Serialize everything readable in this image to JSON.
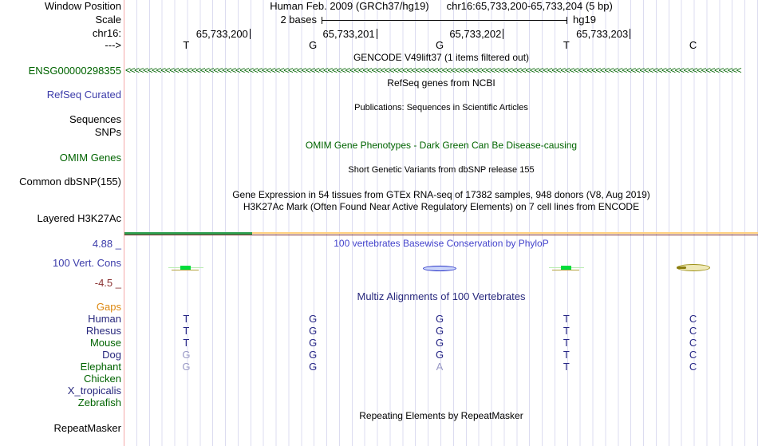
{
  "header": {
    "assembly": "Human Feb. 2009 (GRCh37/hg19)",
    "position": "chr16:65,733,200-65,733,204 (5 bp)",
    "scale_value": "2 bases",
    "assembly_short": "hg19"
  },
  "sidebar": {
    "window_position": "Window Position",
    "scale": "Scale",
    "chrom": "chr16:",
    "direction": "--->",
    "gene_id": "ENSG00000298355",
    "refseq_curated": "RefSeq Curated",
    "sequences": "Sequences",
    "snps": "SNPs",
    "omim_genes": "OMIM Genes",
    "common_dbsnp": "Common dbSNP(155)",
    "layered_h3k27ac": "Layered H3K27Ac",
    "phylop_max": "4.88 _",
    "vert_cons": "100 Vert. Cons",
    "phylop_min": "-4.5 _",
    "gaps": "Gaps",
    "repeatmasker": "RepeatMasker"
  },
  "ruler": {
    "coordinates": [
      "65,733,200",
      "65,733,201",
      "65,733,202",
      "65,733,203"
    ],
    "bases": [
      "T",
      "G",
      "G",
      "T",
      "C"
    ]
  },
  "titles": {
    "gencode": "GENCODE V49lift37 (1 items filtered out)",
    "refseq": "RefSeq genes from NCBI",
    "publications": "Publications: Sequences in Scientific Articles",
    "omim": "OMIM Gene Phenotypes - Dark Green Can Be Disease-causing",
    "dbsnp": "Short Genetic Variants from dbSNP release 155",
    "gtex": "Gene Expression in 54 tissues from GTEx RNA-seq of 17382 samples, 948 donors (V8, Aug 2019)",
    "h3k27ac": "H3K27Ac Mark (Often Found Near Active Regulatory Elements) on 7 cell lines from ENCODE",
    "phylop": "100 vertebrates Basewise Conservation by PhyloP",
    "multiz": "Multiz Alignments of 100 Vertebrates",
    "repeatmasker": "Repeating Elements by RepeatMasker"
  },
  "gene_track": {
    "arrow_char": "<",
    "arrow_count": 140
  },
  "conservation_marks": [
    {
      "base": 0,
      "style": "green"
    },
    {
      "base": 2,
      "style": "blue"
    },
    {
      "base": 3,
      "style": "green"
    },
    {
      "base": 4,
      "style": "olive"
    }
  ],
  "alignment": {
    "species": [
      {
        "name": "Human",
        "name_color": "navy",
        "bases": [
          "T",
          "G",
          "G",
          "T",
          "C"
        ],
        "dim": [
          0,
          0,
          0,
          0,
          0
        ]
      },
      {
        "name": "Rhesus",
        "name_color": "navy",
        "bases": [
          "T",
          "G",
          "G",
          "T",
          "C"
        ],
        "dim": [
          0,
          0,
          0,
          0,
          0
        ]
      },
      {
        "name": "Mouse",
        "name_color": "green",
        "bases": [
          "T",
          "G",
          "G",
          "T",
          "C"
        ],
        "dim": [
          0,
          0,
          0,
          0,
          0
        ]
      },
      {
        "name": "Dog",
        "name_color": "navy",
        "bases": [
          "G",
          "G",
          "G",
          "T",
          "C"
        ],
        "dim": [
          1,
          0,
          0,
          0,
          0
        ]
      },
      {
        "name": "Elephant",
        "name_color": "green",
        "bases": [
          "G",
          "G",
          "A",
          "T",
          "C"
        ],
        "dim": [
          1,
          0,
          1,
          0,
          0
        ]
      },
      {
        "name": "Chicken",
        "name_color": "green",
        "bases": [
          "",
          "",
          "",
          "",
          ""
        ],
        "dim": [
          0,
          0,
          0,
          0,
          0
        ]
      },
      {
        "name": "X_tropicalis",
        "name_color": "navy",
        "bases": [
          "",
          "",
          "",
          "",
          ""
        ],
        "dim": [
          0,
          0,
          0,
          0,
          0
        ]
      },
      {
        "name": "Zebrafish",
        "name_color": "green",
        "bases": [
          "",
          "",
          "",
          "",
          ""
        ],
        "dim": [
          0,
          0,
          0,
          0,
          0
        ]
      }
    ]
  },
  "colors": {
    "track_green": "#006400",
    "label_blue": "#3c3caa",
    "multiz_navy": "#28287d",
    "phylop_min_maroon": "#8b3333",
    "gaps_orange": "#dd8811",
    "grid": "#dcdcf0",
    "pink_guide": "#f5a9a9",
    "h3k_green": "#2e9e4f",
    "h3k_orange": "#ffcf7d",
    "h3k_dark": "#7a2a2a",
    "aln_base": "#252585",
    "aln_dim": "#9a9ac6"
  }
}
